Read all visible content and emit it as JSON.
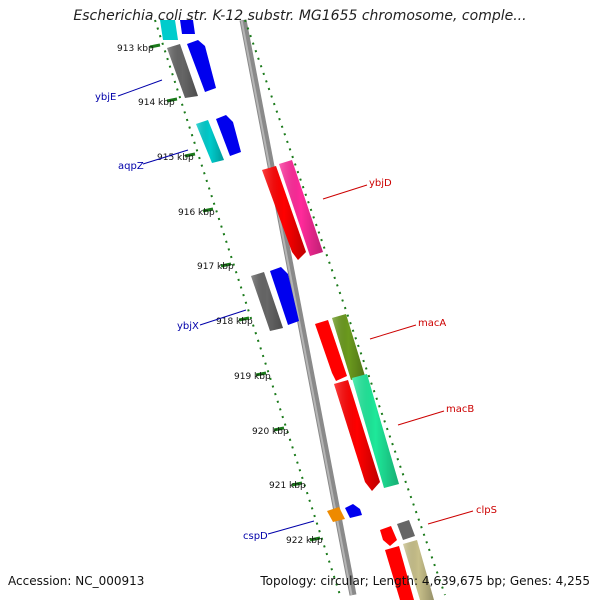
{
  "title": "Escherichia coli str. K-12 substr. MG1655 chromosome, comple...",
  "footer": {
    "accession": "Accession: NC_000913",
    "summary": "Topology: circular; Length: 4,639,675 bp; Genes: 4,255"
  },
  "ruler": {
    "ticks": [
      "913 kbp",
      "914 kbp",
      "915 kbp",
      "916 kbp",
      "917 kbp",
      "918 kbp",
      "919 kbp",
      "920 kbp",
      "921 kbp",
      "922 kbp"
    ]
  },
  "genes": {
    "forward": [
      "ybjE",
      "aqpZ",
      "ybjX",
      "cspD"
    ],
    "reverse": [
      "ybjD",
      "macA",
      "macB",
      "clpS"
    ]
  },
  "colors": {
    "forward_label": "#0000aa",
    "reverse_label": "#cc0000",
    "backbone": "#8a8a8a",
    "tick_marks": "#1a7a1a",
    "red": "#ff0000",
    "pink": "#ff2a9a",
    "olive": "#6b9a1e",
    "spring_green": "#1ee89a",
    "blue": "#0000ee",
    "gray": "#666666",
    "cyan": "#00cccc",
    "orange": "#ee8a00",
    "khaki": "#c8c08a"
  }
}
